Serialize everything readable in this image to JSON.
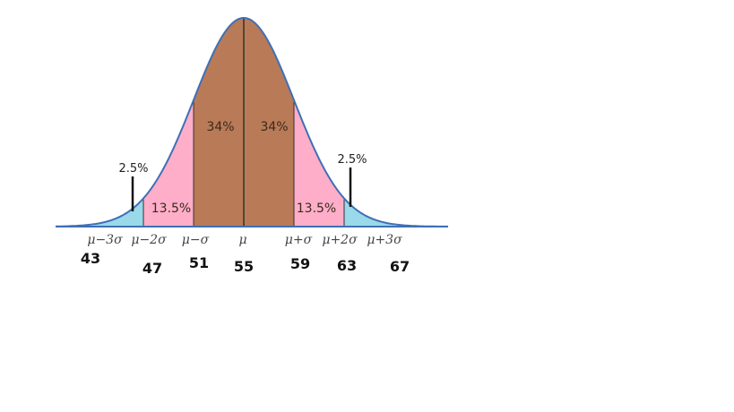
{
  "diagram": {
    "type": "normal-distribution",
    "mean": 55,
    "std_dev": 4,
    "colors": {
      "center": "#b97a57",
      "middle": "#ffaec9",
      "tail": "#99d9ea",
      "curve": "#3f6fb5",
      "divider": "#333333"
    },
    "regions": [
      {
        "id": "left-tail-2",
        "from": -3,
        "to": -2,
        "color_key": "tail"
      },
      {
        "id": "left-middle",
        "from": -2,
        "to": -1,
        "color_key": "middle",
        "label": "13.5%"
      },
      {
        "id": "left-center",
        "from": -1,
        "to": 0,
        "color_key": "center",
        "label": "34%"
      },
      {
        "id": "right-center",
        "from": 0,
        "to": 1,
        "color_key": "center",
        "label": "34%"
      },
      {
        "id": "right-middle",
        "from": 1,
        "to": 2,
        "color_key": "middle",
        "label": "13.5%"
      },
      {
        "id": "right-tail-2",
        "from": 2,
        "to": 3,
        "color_key": "tail"
      }
    ],
    "tail_labels": {
      "left": "2.5%",
      "right": "2.5%"
    },
    "axis_symbols": [
      "μ−3σ",
      "μ−2σ",
      "μ−σ",
      "μ",
      "μ+σ",
      "μ+2σ",
      "μ+3σ"
    ],
    "axis_values": [
      "43",
      "47",
      "51",
      "55",
      "59",
      "63",
      "67"
    ]
  }
}
